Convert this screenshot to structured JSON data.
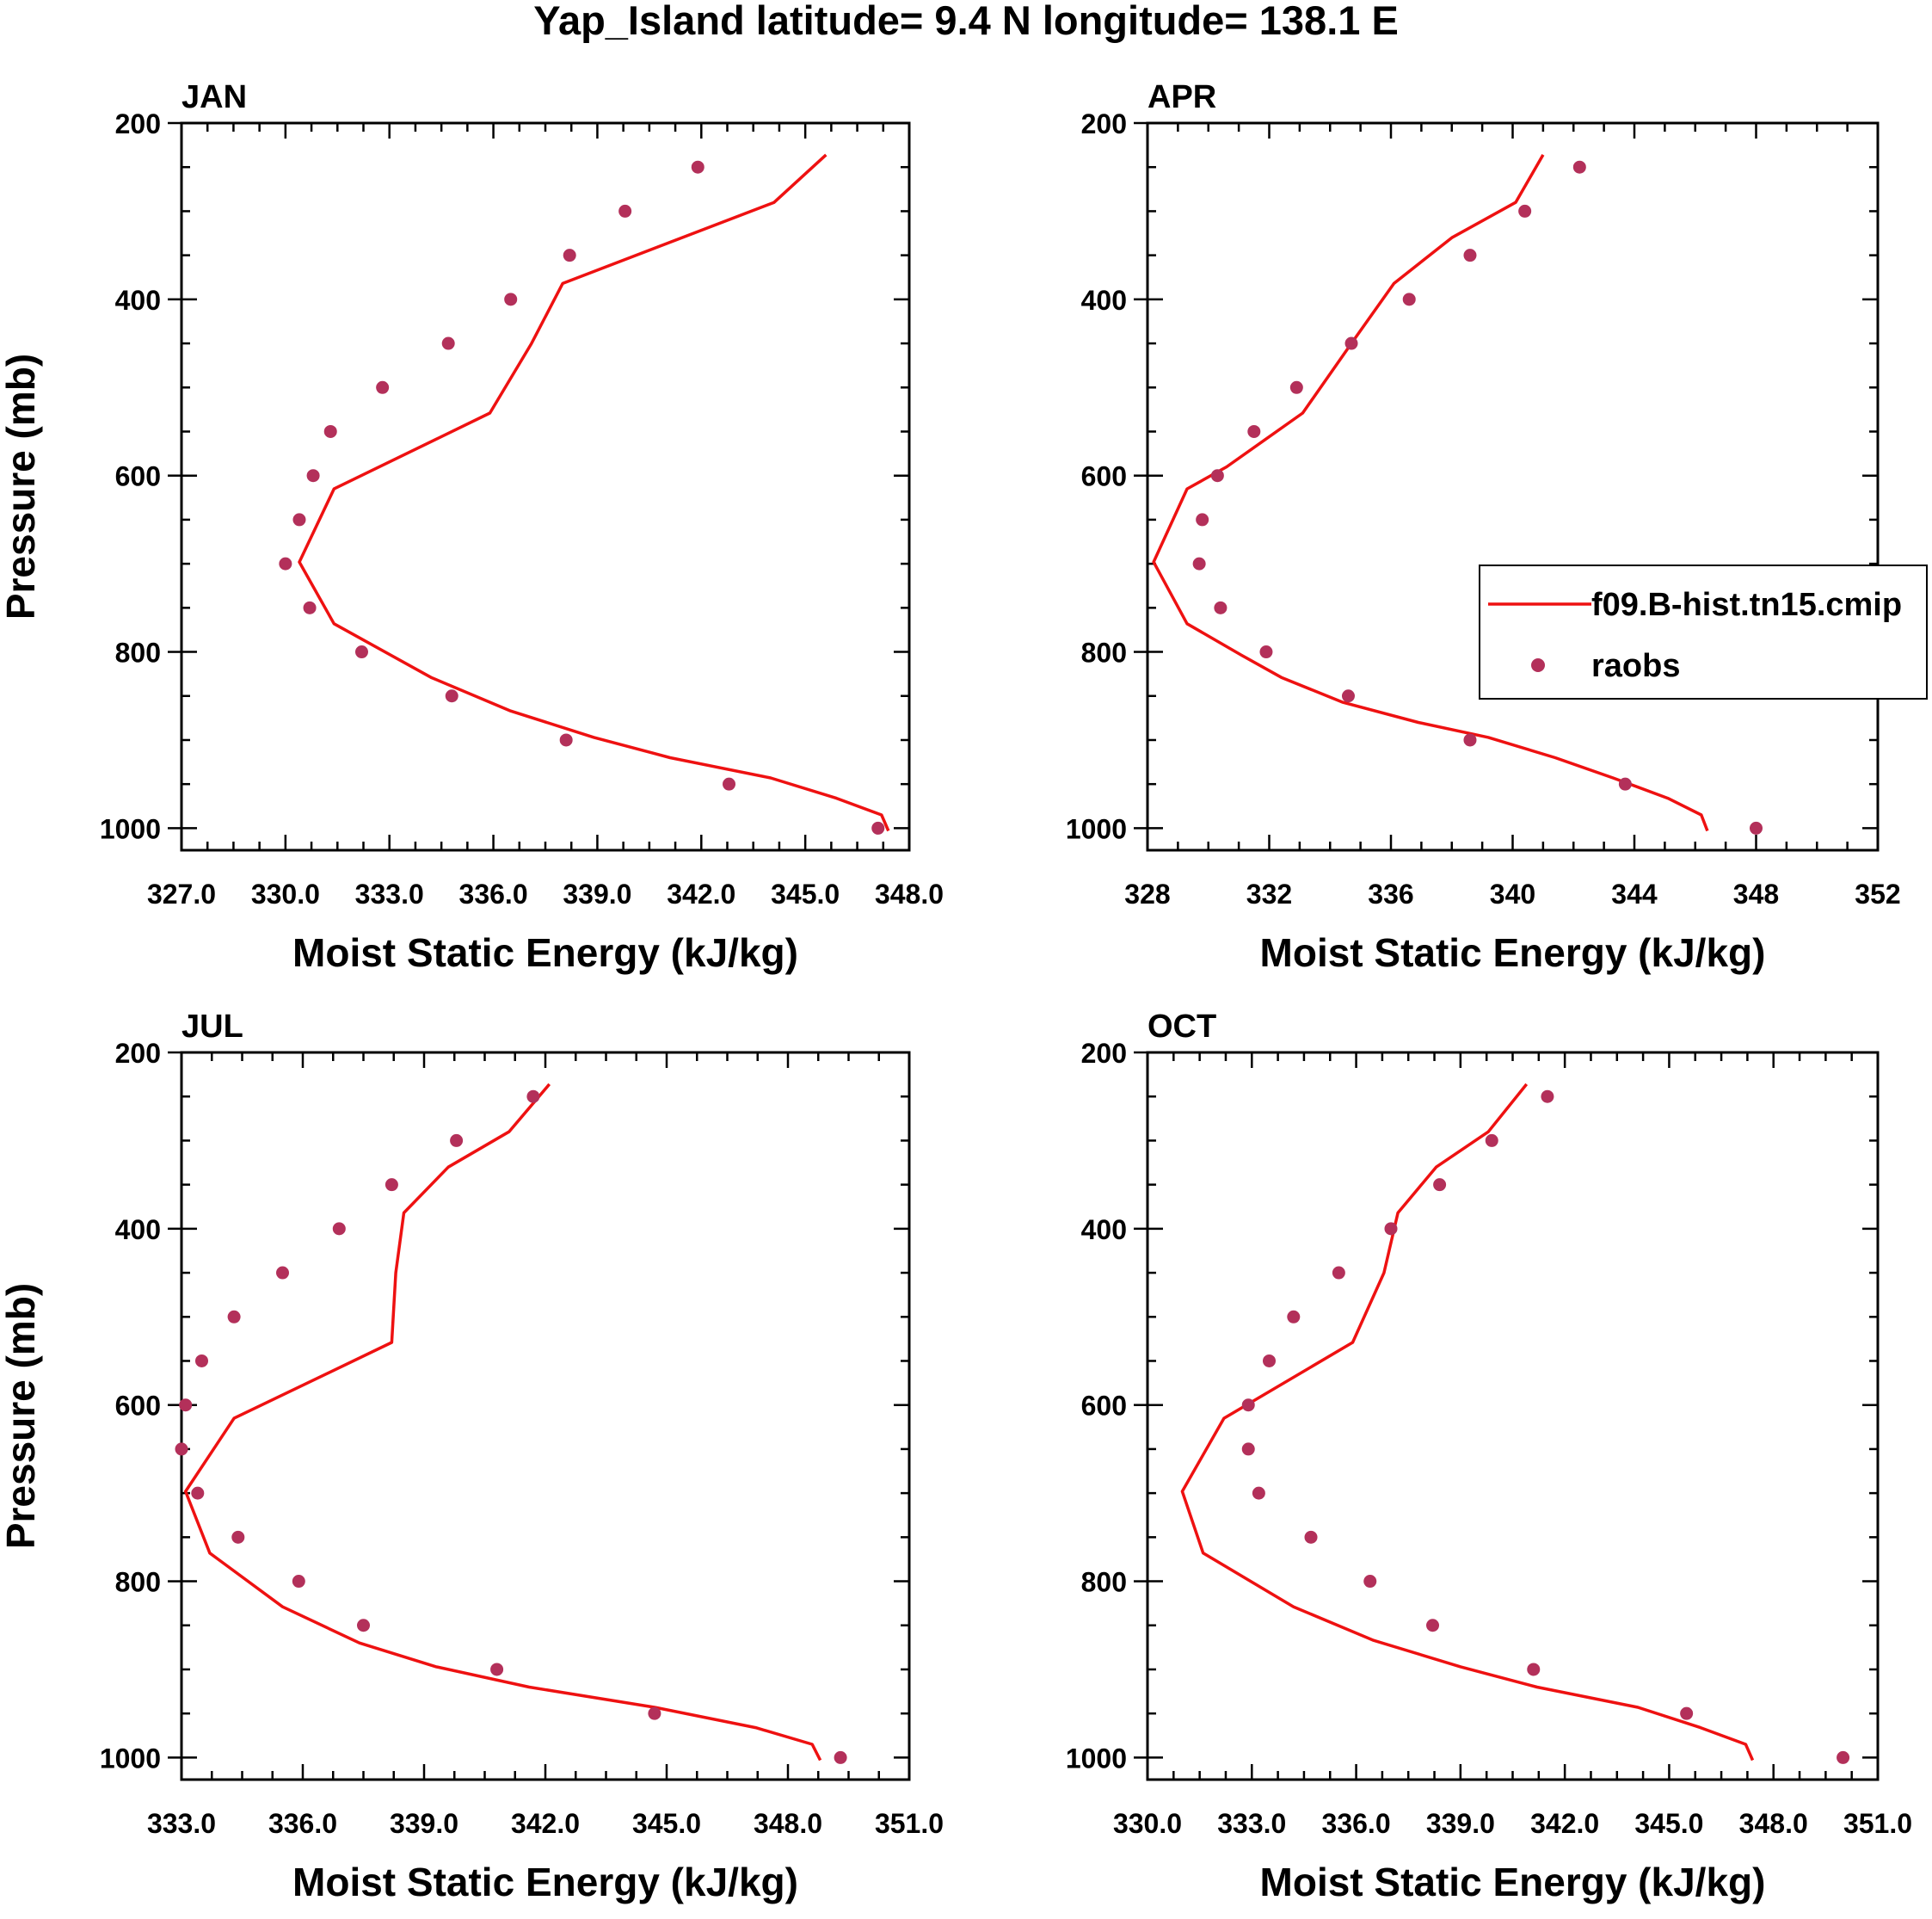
{
  "title": "Yap_Island  latitude= 9.4 N longitude= 138.1 E",
  "colors": {
    "model": "#ee1111",
    "obs": "#b3305a",
    "axis": "#000000"
  },
  "legend": {
    "model_label": "f09.B-hist.tn15.cmip",
    "obs_label": "raobs",
    "panel": 1
  },
  "chart_data": [
    {
      "type": "line",
      "panel_label": "JAN",
      "xlabel": "Moist Static Energy (kJ/kg)",
      "ylabel": "Pressure (mb)",
      "xlim": [
        327,
        348
      ],
      "ylim": [
        1000,
        200
      ],
      "xticks": [
        327,
        330,
        333,
        336,
        339,
        342,
        345,
        348
      ],
      "xtick_labels": [
        "327.0",
        "330.0",
        "333.0",
        "336.0",
        "339.0",
        "342.0",
        "345.0",
        "348.0"
      ],
      "yticks": [
        200,
        400,
        600,
        800,
        1000
      ],
      "ytick_labels": [
        "200",
        "400",
        "600",
        "800",
        "1000"
      ],
      "series": [
        {
          "name": "f09.B-hist.tn15.cmip",
          "style": "line",
          "x": [
            345.6,
            344.1,
            338.0,
            337.1,
            335.9,
            331.4,
            330.4,
            331.4,
            334.2,
            336.5,
            338.9,
            341.1,
            344.0,
            345.9,
            347.2,
            347.4
          ],
          "y": [
            236,
            290,
            382,
            450,
            529,
            615,
            698,
            768,
            829,
            867,
            897,
            920,
            943,
            966,
            985,
            1003
          ]
        },
        {
          "name": "raobs",
          "style": "markers",
          "x": [
            341.9,
            339.8,
            338.2,
            336.5,
            334.7,
            332.8,
            331.3,
            330.8,
            330.4,
            330.0,
            330.7,
            332.2,
            334.8,
            338.1,
            342.8,
            347.1
          ],
          "y": [
            250,
            300,
            350,
            400,
            450,
            500,
            550,
            600,
            650,
            700,
            750,
            800,
            850,
            900,
            950,
            1000
          ]
        }
      ]
    },
    {
      "type": "line",
      "panel_label": "APR",
      "xlabel": "Moist Static Energy (kJ/kg)",
      "ylabel": "",
      "xlim": [
        328,
        352
      ],
      "ylim": [
        1000,
        200
      ],
      "xticks": [
        328,
        332,
        336,
        340,
        344,
        348,
        352
      ],
      "xtick_labels": [
        "328",
        "332",
        "336",
        "340",
        "344",
        "348",
        "352"
      ],
      "yticks": [
        200,
        400,
        600,
        800,
        1000
      ],
      "yticks_minor_every": 50,
      "ytick_labels": [
        "200",
        "400",
        "600",
        "800",
        "1000"
      ],
      "series": [
        {
          "name": "f09.B-hist.tn15.cmip",
          "style": "line",
          "x": [
            341.0,
            340.1,
            338.0,
            336.1,
            334.7,
            333.1,
            330.6,
            329.3,
            328.2,
            329.3,
            331.1,
            332.4,
            334.4,
            336.9,
            339.2,
            341.4,
            343.3,
            345.1,
            346.2,
            346.4
          ],
          "y": [
            236,
            290,
            330,
            382,
            450,
            529,
            590,
            615,
            698,
            768,
            804,
            829,
            857,
            880,
            897,
            920,
            943,
            966,
            985,
            1003
          ]
        },
        {
          "name": "raobs",
          "style": "markers",
          "x": [
            342.2,
            340.4,
            338.6,
            336.6,
            334.7,
            332.9,
            331.5,
            330.3,
            329.8,
            329.7,
            330.4,
            331.9,
            334.6,
            338.6,
            343.7,
            348.0
          ],
          "y": [
            250,
            300,
            350,
            400,
            450,
            500,
            550,
            600,
            650,
            700,
            750,
            800,
            850,
            900,
            950,
            1000
          ]
        }
      ]
    },
    {
      "type": "line",
      "panel_label": "JUL",
      "xlabel": "Moist Static Energy (kJ/kg)",
      "ylabel": "Pressure (mb)",
      "xlim": [
        333,
        351
      ],
      "ylim": [
        1000,
        200
      ],
      "xticks": [
        333,
        336,
        339,
        342,
        345,
        348,
        351
      ],
      "xtick_labels": [
        "333.0",
        "336.0",
        "339.0",
        "342.0",
        "345.0",
        "348.0",
        "351.0"
      ],
      "yticks": [
        200,
        400,
        600,
        800,
        1000
      ],
      "ytick_labels": [
        "200",
        "400",
        "600",
        "800",
        "1000"
      ],
      "series": [
        {
          "name": "f09.B-hist.tn15.cmip",
          "style": "line",
          "x": [
            342.1,
            341.1,
            339.6,
            338.5,
            338.3,
            338.2,
            334.3,
            333.1,
            333.7,
            335.5,
            337.4,
            339.3,
            341.6,
            344.7,
            347.2,
            348.6,
            348.8
          ],
          "y": [
            236,
            290,
            330,
            382,
            450,
            529,
            615,
            698,
            768,
            829,
            870,
            897,
            920,
            943,
            966,
            985,
            1003
          ]
        },
        {
          "name": "raobs",
          "style": "markers",
          "x": [
            341.7,
            339.8,
            338.2,
            336.9,
            335.5,
            334.3,
            333.5,
            333.1,
            333.0,
            333.4,
            334.4,
            335.9,
            337.5,
            340.8,
            344.7,
            349.3
          ],
          "y": [
            250,
            300,
            350,
            400,
            450,
            500,
            550,
            600,
            650,
            700,
            750,
            800,
            850,
            900,
            950,
            1000
          ]
        }
      ]
    },
    {
      "type": "line",
      "panel_label": "OCT",
      "xlabel": "Moist Static Energy (kJ/kg)",
      "ylabel": "",
      "xlim": [
        330,
        351
      ],
      "ylim": [
        1000,
        200
      ],
      "xticks": [
        330,
        333,
        336,
        339,
        342,
        345,
        348,
        351
      ],
      "xtick_labels": [
        "330.0",
        "333.0",
        "336.0",
        "339.0",
        "342.0",
        "345.0",
        "348.0",
        "351.0"
      ],
      "yticks": [
        200,
        400,
        600,
        800,
        1000
      ],
      "ytick_labels": [
        "200",
        "400",
        "600",
        "800",
        "1000"
      ],
      "series": [
        {
          "name": "f09.B-hist.tn15.cmip",
          "style": "line",
          "x": [
            340.9,
            339.8,
            338.3,
            337.2,
            336.8,
            335.9,
            332.2,
            331.0,
            331.6,
            334.2,
            336.5,
            339.0,
            341.2,
            344.1,
            345.9,
            347.2,
            347.4
          ],
          "y": [
            236,
            290,
            330,
            382,
            450,
            529,
            615,
            698,
            768,
            829,
            867,
            897,
            920,
            943,
            966,
            985,
            1003
          ]
        },
        {
          "name": "raobs",
          "style": "markers",
          "x": [
            341.5,
            339.9,
            338.4,
            337.0,
            335.5,
            334.2,
            333.5,
            332.9,
            332.9,
            333.2,
            334.7,
            336.4,
            338.2,
            341.1,
            345.5,
            350.0
          ],
          "y": [
            250,
            300,
            350,
            400,
            450,
            500,
            550,
            600,
            650,
            700,
            750,
            800,
            850,
            900,
            950,
            1000
          ]
        }
      ]
    }
  ]
}
